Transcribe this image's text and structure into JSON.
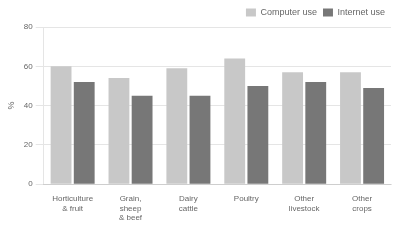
{
  "chart_data": {
    "type": "bar",
    "categories": [
      "Horticulture\n& fruit",
      "Grain,\nsheep\n& beef",
      "Dairy\ncattle",
      "Poultry",
      "Other\nlivestock",
      "Other\ncrops"
    ],
    "series": [
      {
        "name": "Computer use",
        "color": "#c8c8c8",
        "values": [
          60,
          54,
          59,
          64,
          57,
          57
        ]
      },
      {
        "name": "Internet use",
        "color": "#777777",
        "values": [
          52,
          45,
          45,
          50,
          52,
          49
        ]
      }
    ],
    "ylabel": "%",
    "ylim": [
      0,
      80
    ],
    "yticks": [
      0,
      20,
      40,
      60,
      80
    ],
    "grid": true,
    "legend": "upper right"
  }
}
